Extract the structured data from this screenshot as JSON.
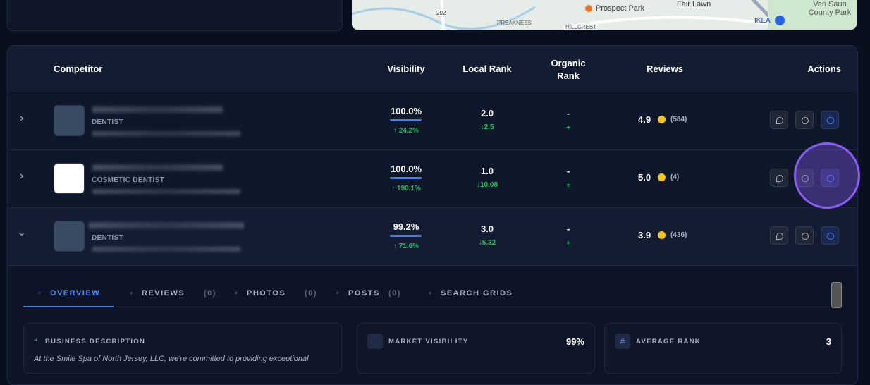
{
  "map": {
    "labels": [
      "Prospect Park",
      "Fair Lawn",
      "Van Saun County Park",
      "PREAKNESS",
      "HILLCREST",
      "IKEA",
      "202"
    ]
  },
  "table": {
    "headers": [
      "Competitor",
      "Visibility",
      "Local Rank",
      "Organic Rank",
      "Reviews",
      "Actions"
    ],
    "rows": [
      {
        "category": "DENTIST",
        "visibility": "100.0%",
        "visibility_change": "↑ 24.2%",
        "local_rank": "2.0",
        "local_rank_change": "↓2.5",
        "organic_rank": "-",
        "organic_change": "+",
        "rating": "4.9",
        "review_count": "(584)"
      },
      {
        "category": "COSMETIC DENTIST",
        "visibility": "100.0%",
        "visibility_change": "↑ 190.1%",
        "local_rank": "1.0",
        "local_rank_change": "↓10.08",
        "organic_rank": "-",
        "organic_change": "+",
        "rating": "5.0",
        "review_count": "(4)"
      },
      {
        "category": "DENTIST",
        "visibility": "99.2%",
        "visibility_change": "↑ 71.6%",
        "local_rank": "3.0",
        "local_rank_change": "↓5.32",
        "organic_rank": "-",
        "organic_change": "+",
        "rating": "3.9",
        "review_count": "(436)"
      }
    ]
  },
  "tabs": [
    {
      "label": "OVERVIEW"
    },
    {
      "label": "REVIEWS",
      "count": "(0)"
    },
    {
      "label": "PHOTOS",
      "count": "(0)"
    },
    {
      "label": "POSTS",
      "count": "(0)"
    },
    {
      "label": "SEARCH GRIDS"
    }
  ],
  "cards": {
    "description": {
      "title": "BUSINESS DESCRIPTION",
      "text": "At the Smile Spa of North Jersey, LLC, we're committed to providing exceptional"
    },
    "visibility": {
      "title": "MARKET VISIBILITY",
      "value": "99%"
    },
    "rank": {
      "title": "AVERAGE RANK",
      "value": "3"
    }
  }
}
